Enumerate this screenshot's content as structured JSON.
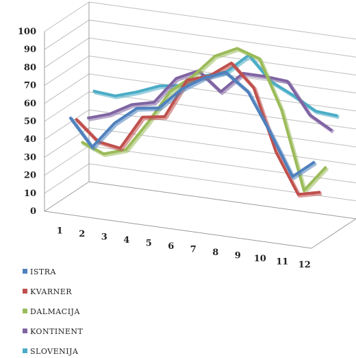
{
  "chart_data": {
    "type": "line",
    "style": "3d",
    "title": "",
    "xlabel": "",
    "ylabel": "",
    "ylim": [
      0,
      100
    ],
    "y_ticks": [
      "0",
      "10",
      "20",
      "30",
      "40",
      "50",
      "60",
      "70",
      "80",
      "90",
      "100"
    ],
    "categories": [
      "1",
      "2",
      "3",
      "4",
      "5",
      "6",
      "7",
      "8",
      "9",
      "10",
      "11",
      "12"
    ],
    "grid": true,
    "legend_position": "bottom-left",
    "series": [
      {
        "name": "ISTRA",
        "color": "#4f81bd",
        "values": [
          48,
          33,
          48,
          58,
          60,
          72,
          80,
          85,
          76,
          55,
          32,
          42
        ]
      },
      {
        "name": "KVARNER",
        "color": "#c0504d",
        "values": [
          45,
          34,
          32,
          51,
          53,
          75,
          79,
          88,
          76,
          42,
          20,
          23
        ]
      },
      {
        "name": "DALMACIJA",
        "color": "#9bbb59",
        "values": [
          30,
          25,
          29,
          46,
          65,
          75,
          88,
          94,
          90,
          63,
          20,
          35
        ]
      },
      {
        "name": "KONTINENT",
        "color": "#8064a2",
        "values": [
          41,
          45,
          52,
          55,
          70,
          76,
          66,
          78,
          78,
          77,
          60,
          53
        ]
      },
      {
        "name": "SLOVENIJA",
        "color": "#4bacc6",
        "values": [
          54,
          53,
          57,
          62,
          64,
          71,
          75,
          86,
          73,
          67,
          60,
          59
        ]
      }
    ]
  }
}
